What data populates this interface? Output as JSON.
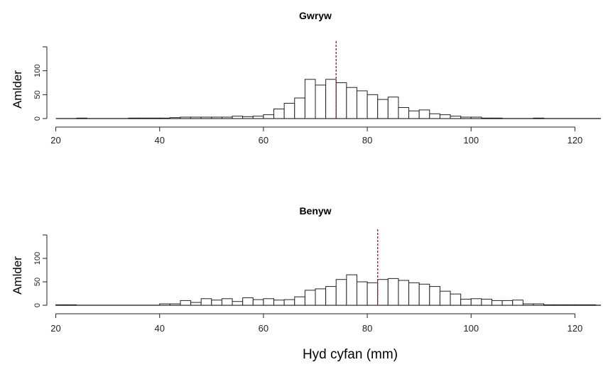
{
  "chart_data": [
    {
      "type": "bar",
      "title": "Gwryw",
      "ylabel": "Amlder",
      "xlim": [
        15,
        125
      ],
      "ylim": [
        0,
        150
      ],
      "xticks": [
        20,
        40,
        60,
        80,
        100,
        120
      ],
      "yticks": [
        0,
        50,
        100
      ],
      "bin_width": 2,
      "bins_start": [
        24,
        34,
        36,
        38,
        40,
        42,
        44,
        46,
        48,
        50,
        52,
        54,
        56,
        58,
        60,
        62,
        64,
        66,
        68,
        70,
        72,
        74,
        76,
        78,
        80,
        82,
        84,
        86,
        88,
        90,
        92,
        94,
        96,
        98,
        100,
        102,
        104,
        112
      ],
      "values": [
        1,
        1,
        1,
        1,
        1,
        2,
        3,
        3,
        3,
        3,
        3,
        5,
        4,
        5,
        8,
        20,
        32,
        43,
        82,
        70,
        82,
        75,
        65,
        58,
        50,
        40,
        45,
        23,
        16,
        18,
        10,
        8,
        5,
        3,
        3,
        1,
        1,
        1
      ],
      "mean_line": 74
    },
    {
      "type": "bar",
      "title": "Benyw",
      "ylabel": "Amlder",
      "xlabel": "Hyd cyfan (mm)",
      "xlim": [
        15,
        125
      ],
      "ylim": [
        0,
        150
      ],
      "xticks": [
        20,
        40,
        60,
        80,
        100,
        120
      ],
      "yticks": [
        0,
        50,
        100
      ],
      "bin_width": 2,
      "bins_start": [
        20,
        22,
        40,
        42,
        44,
        46,
        48,
        50,
        52,
        54,
        56,
        58,
        60,
        62,
        64,
        66,
        68,
        70,
        72,
        74,
        76,
        78,
        80,
        82,
        84,
        86,
        88,
        90,
        92,
        94,
        96,
        98,
        100,
        102,
        104,
        106,
        108,
        110,
        112,
        114,
        116,
        118,
        120,
        122
      ],
      "values": [
        1,
        1,
        3,
        3,
        10,
        6,
        14,
        11,
        14,
        8,
        16,
        12,
        14,
        11,
        12,
        18,
        32,
        35,
        40,
        55,
        65,
        50,
        48,
        55,
        57,
        53,
        48,
        45,
        40,
        30,
        24,
        13,
        14,
        13,
        10,
        10,
        11,
        3,
        3,
        1,
        1,
        1,
        1,
        1
      ],
      "mean_line": 82
    }
  ]
}
